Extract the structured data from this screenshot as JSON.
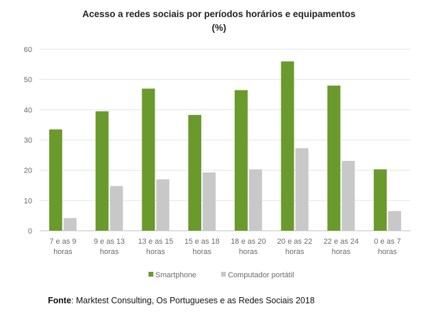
{
  "chart_data": {
    "type": "bar",
    "title_lines": [
      "Acesso a redes sociais por períodos horários e equipamentos",
      "(%)"
    ],
    "categories": [
      [
        "7 e as 9",
        "horas"
      ],
      [
        "9 e as 13",
        "horas"
      ],
      [
        "13 e as 15",
        "horas"
      ],
      [
        "15 e as 18",
        "horas"
      ],
      [
        "18 e as 20",
        "horas"
      ],
      [
        "20 e as 22",
        "horas"
      ],
      [
        "22 e as 24",
        "horas"
      ],
      [
        "0 e as 7",
        "horas"
      ]
    ],
    "series": [
      {
        "name": "Smartphone",
        "color": "#6a9a2c",
        "values": [
          33.5,
          39.5,
          47,
          38.3,
          46.5,
          56,
          48,
          20.3
        ]
      },
      {
        "name": "Computador portátil",
        "color": "#c8c8c8",
        "values": [
          4.2,
          14.8,
          17,
          19.3,
          20.3,
          27.3,
          23.1,
          6.5
        ]
      }
    ],
    "ylim": [
      0,
      60
    ],
    "yticks": [
      0,
      10,
      20,
      30,
      40,
      50,
      60
    ],
    "grid": true,
    "legend_position": "bottom"
  },
  "source": {
    "label": "Fonte",
    "text": ": Marktest Consulting, Os Portugueses e as Redes Sociais 2018"
  }
}
